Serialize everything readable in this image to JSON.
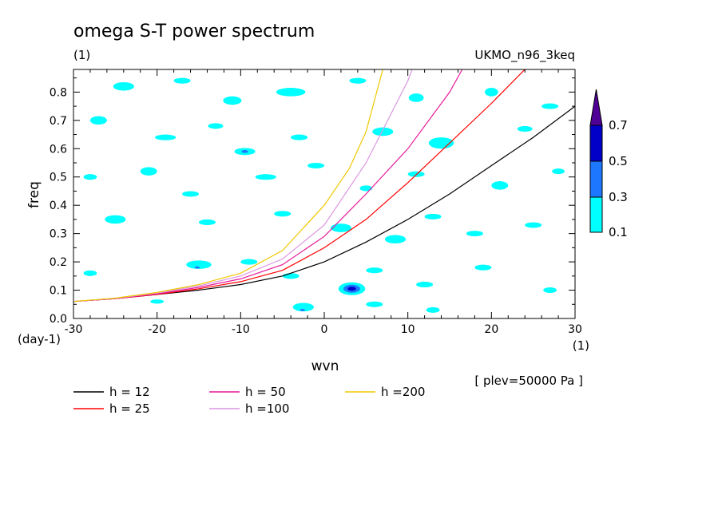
{
  "chart_data": {
    "type": "heatmap",
    "title": "omega S-T power spectrum",
    "subtitle_left": "(1)",
    "subtitle_right": "UKMO_n96_3keq",
    "xlabel": "wvn",
    "ylabel": "freq",
    "x_unit_label": "(1)",
    "y_unit_label": "(day-1)",
    "footnote": "[ plev=50000 Pa ]",
    "xlim": [
      -30,
      30
    ],
    "ylim": [
      0,
      0.88
    ],
    "x_ticks": [
      -30,
      -20,
      -10,
      0,
      10,
      20,
      30
    ],
    "x_tick_labels": [
      "-30",
      "-20",
      "-10",
      "0",
      "10",
      "20",
      "30"
    ],
    "y_ticks": [
      0,
      0.1,
      0.2,
      0.3,
      0.4,
      0.5,
      0.6,
      0.7,
      0.8
    ],
    "y_tick_labels": [
      "0.0",
      "0.1",
      "0.2",
      "0.3",
      "0.4",
      "0.5",
      "0.6",
      "0.7",
      "0.8"
    ],
    "colorbar": {
      "levels": [
        "0.1",
        "0.3",
        "0.5",
        "0.7"
      ],
      "colors": [
        "#00ffff",
        "#1e78ff",
        "#0000c8",
        "#500096"
      ]
    },
    "contour_patches": [
      {
        "x": -24,
        "y": 0.82,
        "w": 2.5,
        "h": 0.03,
        "level": 0
      },
      {
        "x": -17,
        "y": 0.84,
        "w": 2.0,
        "h": 0.02,
        "level": 0
      },
      {
        "x": -11,
        "y": 0.77,
        "w": 2.2,
        "h": 0.03,
        "level": 0
      },
      {
        "x": -4,
        "y": 0.8,
        "w": 3.5,
        "h": 0.03,
        "level": 0
      },
      {
        "x": 4,
        "y": 0.84,
        "w": 2.0,
        "h": 0.02,
        "level": 0
      },
      {
        "x": 11,
        "y": 0.78,
        "w": 1.8,
        "h": 0.03,
        "level": 0
      },
      {
        "x": 20,
        "y": 0.8,
        "w": 1.6,
        "h": 0.03,
        "level": 0
      },
      {
        "x": 27,
        "y": 0.75,
        "w": 2.0,
        "h": 0.02,
        "level": 0
      },
      {
        "x": -27,
        "y": 0.7,
        "w": 2.0,
        "h": 0.03,
        "level": 0
      },
      {
        "x": -19,
        "y": 0.64,
        "w": 2.5,
        "h": 0.02,
        "level": 0
      },
      {
        "x": -13,
        "y": 0.68,
        "w": 1.8,
        "h": 0.02,
        "level": 0
      },
      {
        "x": -9.5,
        "y": 0.59,
        "w": 2.5,
        "h": 0.025,
        "level": 0
      },
      {
        "x": -9.5,
        "y": 0.59,
        "w": 0.8,
        "h": 0.01,
        "level": 1
      },
      {
        "x": -3,
        "y": 0.64,
        "w": 2.0,
        "h": 0.02,
        "level": 0
      },
      {
        "x": 7,
        "y": 0.66,
        "w": 2.5,
        "h": 0.03,
        "level": 0
      },
      {
        "x": 14,
        "y": 0.62,
        "w": 3.0,
        "h": 0.04,
        "level": 0
      },
      {
        "x": 24,
        "y": 0.67,
        "w": 1.8,
        "h": 0.02,
        "level": 0
      },
      {
        "x": -28,
        "y": 0.5,
        "w": 1.6,
        "h": 0.02,
        "level": 0
      },
      {
        "x": -21,
        "y": 0.52,
        "w": 2.0,
        "h": 0.03,
        "level": 0
      },
      {
        "x": -16,
        "y": 0.44,
        "w": 2.0,
        "h": 0.02,
        "level": 0
      },
      {
        "x": -7,
        "y": 0.5,
        "w": 2.5,
        "h": 0.02,
        "level": 0
      },
      {
        "x": -1,
        "y": 0.54,
        "w": 2.0,
        "h": 0.02,
        "level": 0
      },
      {
        "x": 5,
        "y": 0.46,
        "w": 1.5,
        "h": 0.02,
        "level": 0
      },
      {
        "x": 11,
        "y": 0.51,
        "w": 2.0,
        "h": 0.02,
        "level": 0
      },
      {
        "x": 21,
        "y": 0.47,
        "w": 2.0,
        "h": 0.03,
        "level": 0
      },
      {
        "x": 28,
        "y": 0.52,
        "w": 1.5,
        "h": 0.02,
        "level": 0
      },
      {
        "x": -25,
        "y": 0.35,
        "w": 2.5,
        "h": 0.03,
        "level": 0
      },
      {
        "x": -14,
        "y": 0.34,
        "w": 2.0,
        "h": 0.02,
        "level": 0
      },
      {
        "x": -5,
        "y": 0.37,
        "w": 2.0,
        "h": 0.02,
        "level": 0
      },
      {
        "x": 2,
        "y": 0.32,
        "w": 2.5,
        "h": 0.03,
        "level": 0
      },
      {
        "x": 8.5,
        "y": 0.28,
        "w": 2.5,
        "h": 0.03,
        "level": 0
      },
      {
        "x": 13,
        "y": 0.36,
        "w": 2.0,
        "h": 0.02,
        "level": 0
      },
      {
        "x": 18,
        "y": 0.3,
        "w": 2.0,
        "h": 0.02,
        "level": 0
      },
      {
        "x": 25,
        "y": 0.33,
        "w": 2.0,
        "h": 0.02,
        "level": 0
      },
      {
        "x": -15,
        "y": 0.19,
        "w": 3.0,
        "h": 0.03,
        "level": 0
      },
      {
        "x": -15.2,
        "y": 0.18,
        "w": 0.6,
        "h": 0.008,
        "level": 1
      },
      {
        "x": -9,
        "y": 0.2,
        "w": 2.0,
        "h": 0.02,
        "level": 0
      },
      {
        "x": -28,
        "y": 0.16,
        "w": 1.6,
        "h": 0.02,
        "level": 0
      },
      {
        "x": -4,
        "y": 0.15,
        "w": 2.0,
        "h": 0.02,
        "level": 0
      },
      {
        "x": 6,
        "y": 0.17,
        "w": 2.0,
        "h": 0.02,
        "level": 0
      },
      {
        "x": 12,
        "y": 0.12,
        "w": 2.0,
        "h": 0.02,
        "level": 0
      },
      {
        "x": 19,
        "y": 0.18,
        "w": 2.0,
        "h": 0.02,
        "level": 0
      },
      {
        "x": 27,
        "y": 0.1,
        "w": 1.6,
        "h": 0.02,
        "level": 0
      },
      {
        "x": 3.3,
        "y": 0.105,
        "w": 3.2,
        "h": 0.045,
        "level": 0
      },
      {
        "x": 3.3,
        "y": 0.105,
        "w": 2.0,
        "h": 0.028,
        "level": 1
      },
      {
        "x": 3.3,
        "y": 0.105,
        "w": 1.0,
        "h": 0.014,
        "level": 2
      },
      {
        "x": -2.5,
        "y": 0.04,
        "w": 2.5,
        "h": 0.03,
        "level": 0
      },
      {
        "x": -2.6,
        "y": 0.03,
        "w": 0.6,
        "h": 0.008,
        "level": 1
      },
      {
        "x": 6,
        "y": 0.05,
        "w": 2.0,
        "h": 0.02,
        "level": 0
      },
      {
        "x": 13,
        "y": 0.03,
        "w": 1.6,
        "h": 0.02,
        "level": 0
      },
      {
        "x": -20,
        "y": 0.06,
        "w": 1.6,
        "h": 0.015,
        "level": 0
      }
    ],
    "series": [
      {
        "name": "h = 12",
        "color": "#000000",
        "x": [
          -30,
          -25,
          -20,
          -15,
          -10,
          -5,
          0,
          5,
          10,
          15,
          20,
          25,
          30
        ],
        "y": [
          0.06,
          0.07,
          0.085,
          0.1,
          0.12,
          0.15,
          0.2,
          0.27,
          0.35,
          0.44,
          0.54,
          0.64,
          0.75
        ]
      },
      {
        "name": "h = 25",
        "color": "#ff0000",
        "x": [
          -30,
          -25,
          -20,
          -15,
          -10,
          -5,
          0,
          5,
          10,
          15,
          20,
          24
        ],
        "y": [
          0.06,
          0.07,
          0.085,
          0.105,
          0.13,
          0.17,
          0.25,
          0.35,
          0.48,
          0.62,
          0.76,
          0.88
        ]
      },
      {
        "name": "h = 50",
        "color": "#e6199b",
        "x": [
          -30,
          -25,
          -20,
          -15,
          -10,
          -5,
          0,
          5,
          10,
          15,
          16.5
        ],
        "y": [
          0.06,
          0.07,
          0.087,
          0.11,
          0.14,
          0.19,
          0.29,
          0.44,
          0.6,
          0.8,
          0.88
        ]
      },
      {
        "name": "h =100",
        "color": "#dc96e1",
        "x": [
          -30,
          -25,
          -20,
          -15,
          -10,
          -5,
          0,
          5,
          10,
          10.5
        ],
        "y": [
          0.06,
          0.071,
          0.09,
          0.115,
          0.15,
          0.21,
          0.33,
          0.55,
          0.84,
          0.88
        ]
      },
      {
        "name": "h =200",
        "color": "#f0c800",
        "x": [
          -30,
          -25,
          -20,
          -15,
          -10,
          -5,
          0,
          3,
          5,
          7
        ],
        "y": [
          0.06,
          0.072,
          0.092,
          0.12,
          0.16,
          0.24,
          0.4,
          0.53,
          0.66,
          0.88
        ]
      }
    ]
  }
}
